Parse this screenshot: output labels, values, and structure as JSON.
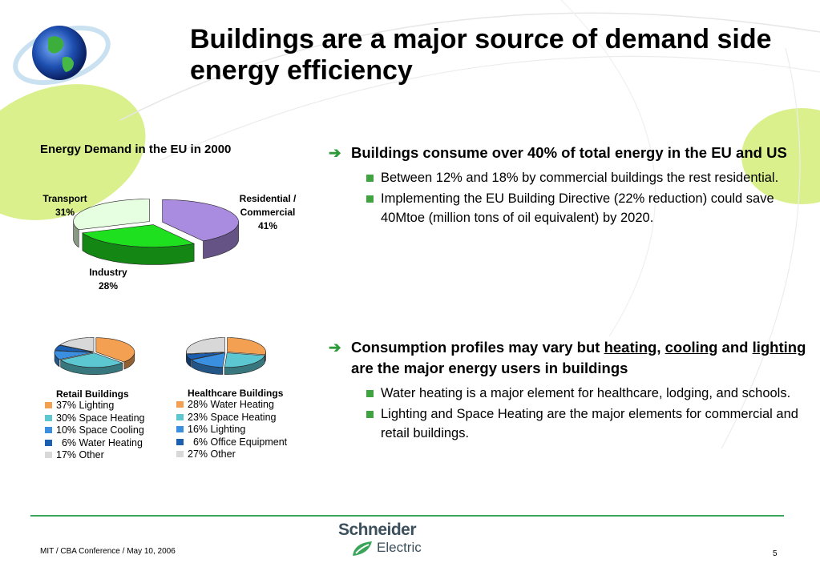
{
  "slide": {
    "title": "Buildings are a major source of demand side energy efficiency",
    "footer": "MIT / CBA Conference / May 10, 2006",
    "page_number": "5"
  },
  "brand": {
    "name_line1": "Schneider",
    "name_line2": "Electric",
    "accent_green": "#3aa55a",
    "leaf_green": "#d7ef8a"
  },
  "main_chart": {
    "title": "Energy Demand in the EU in 2000",
    "slices": [
      {
        "name": "Residential / Commercial",
        "line1": "Residential /",
        "line2": "Commercial",
        "percent": "41%",
        "value": 41,
        "color": "#a98be0"
      },
      {
        "name": "Industry",
        "line1": "Industry",
        "percent": "28%",
        "value": 28,
        "color": "#1fe01f"
      },
      {
        "name": "Transport",
        "line1": "Transport",
        "percent": "31%",
        "value": 31,
        "color": "#e6ffe0"
      }
    ]
  },
  "chart_data": [
    {
      "type": "pie",
      "title": "Energy Demand in the EU in 2000",
      "categories": [
        "Residential / Commercial",
        "Industry",
        "Transport"
      ],
      "values": [
        41,
        28,
        31
      ]
    },
    {
      "type": "pie",
      "title": "Retail Buildings",
      "categories": [
        "Lighting",
        "Space Heating",
        "Space Cooling",
        "Water Heating",
        "Other"
      ],
      "values": [
        37,
        30,
        10,
        6,
        17
      ]
    },
    {
      "type": "pie",
      "title": "Healthcare Buildings",
      "categories": [
        "Water Heating",
        "Space Heating",
        "Lighting",
        "Office Equipment",
        "Other"
      ],
      "values": [
        28,
        23,
        16,
        6,
        27
      ]
    }
  ],
  "retail": {
    "title": "Retail Buildings",
    "items": [
      {
        "label": "37% Lighting",
        "value": 37,
        "color": "#f4a052"
      },
      {
        "label": "30% Space Heating",
        "value": 30,
        "color": "#5cc7d0"
      },
      {
        "label": "10% Space Cooling",
        "value": 10,
        "color": "#3a8fe0"
      },
      {
        "label": "  6% Water Heating",
        "value": 6,
        "color": "#1b5fb0"
      },
      {
        "label": "17% Other",
        "value": 17,
        "color": "#d8d8d8"
      }
    ]
  },
  "healthcare": {
    "title": "Healthcare Buildings",
    "items": [
      {
        "label": "28% Water Heating",
        "value": 28,
        "color": "#f4a052"
      },
      {
        "label": "23% Space Heating",
        "value": 23,
        "color": "#5cc7d0"
      },
      {
        "label": "16% Lighting",
        "value": 16,
        "color": "#3a8fe0"
      },
      {
        "label": "  6% Office Equipment",
        "value": 6,
        "color": "#1b5fb0"
      },
      {
        "label": "27% Other",
        "value": 27,
        "color": "#d8d8d8"
      }
    ]
  },
  "bullets": {
    "b1_text": "Buildings consume over 40% of total energy in the EU and US",
    "b1_sub1": "Between 12% and 18% by commercial buildings the rest residential.",
    "b1_sub2": "Implementing the EU Building Directive (22% reduction) could save 40Mtoe (million tons of oil equivalent) by 2020.",
    "b2_part1": "Consumption profiles may vary but ",
    "b2_heating": "heating",
    "b2_comma": ", ",
    "b2_cooling": "cooling",
    "b2_and": " and ",
    "b2_lighting": "lighting",
    "b2_part2": " are the major energy users in buildings",
    "b2_sub1": "Water heating is a major element for healthcare, lodging, and schools.",
    "b2_sub2": "Lighting and Space Heating are the major elements for commercial and retail buildings.",
    "arrow_icon": "➔"
  }
}
